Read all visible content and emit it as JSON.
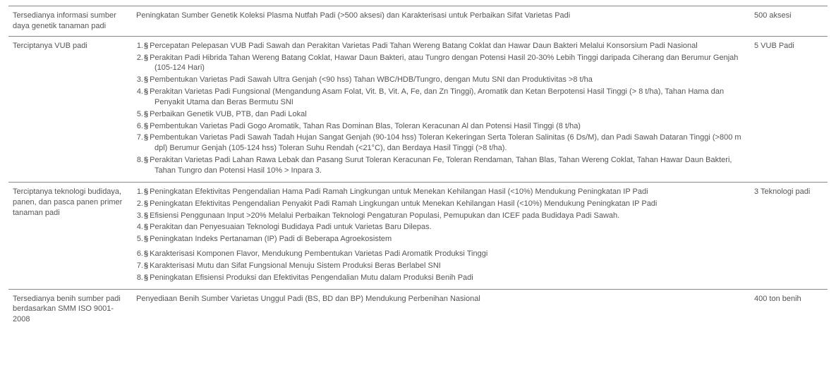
{
  "table": {
    "rows": [
      {
        "col1": "Tersedianya informasi sumber daya genetik tanaman padi",
        "col2_plain": "Peningkatan Sumber Genetik Koleksi Plasma Nutfah Padi (>500 aksesi) dan Karakterisasi untuk Perbaikan Sifat Varietas Padi",
        "col3": "500 aksesi"
      },
      {
        "col1": "Terciptanya VUB padi",
        "col2_list": [
          "Percepatan Pelepasan VUB Padi Sawah dan Perakitan Varietas Padi Tahan Wereng Batang Coklat dan Hawar Daun Bakteri Melalui Konsorsium Padi Nasional",
          "Perakitan Padi Hibrida Tahan Wereng Batang Coklat, Hawar Daun Bakteri, atau Tungro dengan Potensi Hasil 20-30% Lebih Tinggi daripada Ciherang dan Berumur Genjah (105-124 Hari)",
          "Pembentukan Varietas Padi Sawah Ultra Genjah (<90 hss) Tahan WBC/HDB/Tungro, dengan Mutu SNI dan Produktivitas >8 t/ha",
          "Perakitan Varietas Padi Fungsional (Mengandung Asam Folat, Vit. B, Vit. A, Fe, dan Zn Tinggi), Aromatik dan Ketan Berpotensi Hasil Tinggi (> 8 t/ha), Tahan Hama dan Penyakit Utama dan Beras Bermutu SNI",
          "Perbaikan Genetik VUB, PTB, dan Padi Lokal",
          "Pembentukan Varietas Padi Gogo Aromatik, Tahan Ras Dominan Blas, Toleran Keracunan Al dan Potensi Hasil Tinggi (8 t/ha)",
          "Pembentukan Varietas Padi Sawah Tadah Hujan Sangat Genjah (90-104 hss) Toleran Kekeringan Serta Toleran Salinitas (6 Ds/M), dan Padi Sawah Dataran Tinggi (>800 m dpl) Berumur Genjah (105-124 hss) Toleran Suhu Rendah (<21°C), dan Berdaya Hasil Tinggi (>8 t/ha).",
          "Perakitan Varietas Padi Lahan Rawa Lebak dan Pasang Surut Toleran Keracunan Fe, Toleran Rendaman, Tahan Blas, Tahan Wereng Coklat, Tahan Hawar Daun Bakteri, Tahan Tungro dan Potensi Hasil 10% > Inpara 3."
        ],
        "col3": "5 VUB Padi"
      },
      {
        "col1": "Terciptanya teknologi budidaya, panen, dan pasca panen primer tanaman padi",
        "col2_list": [
          "Peningkatan Efektivitas Pengendalian Hama Padi Ramah Lingkungan untuk Menekan Kehilangan Hasil (<10%) Mendukung Peningkatan IP Padi",
          "Peningkatan Efektivitas Pengendalian Penyakit Padi Ramah Lingkungan untuk Menekan Kehilangan Hasil (<10%) Mendukung Peningkatan IP Padi",
          "Efisiensi Penggunaan Input >20% Melalui Perbaikan Teknologi Pengaturan Populasi, Pemupukan dan ICEF pada Budidaya Padi Sawah.",
          "Perakitan dan Penyesuaian Teknologi Budidaya Padi untuk Varietas Baru Dilepas.",
          "Peningkatan Indeks Pertanaman (IP) Padi di Beberapa Agroekosistem"
        ],
        "col2_list_b": [
          "Karakterisasi Komponen Flavor, Mendukung Pembentukan Varietas Padi Aromatik Produksi Tinggi",
          "Karakterisasi Mutu dan Sifat Fungsional Menuju Sistem Produksi Beras Berlabel SNI",
          "Peningkatan Efisiensi Produksi dan Efektivitas Pengendalian Mutu dalam Produksi Benih Padi"
        ],
        "col3": "3 Teknologi padi"
      },
      {
        "col1": "Tersedianya benih sumber padi berdasarkan SMM ISO 9001-2008",
        "col2_plain": "Penyediaan Benih Sumber Varietas Unggul Padi (BS, BD dan BP) Mendukung Perbenihan Nasional",
        "col3": "400 ton benih"
      }
    ]
  },
  "marker": "§"
}
